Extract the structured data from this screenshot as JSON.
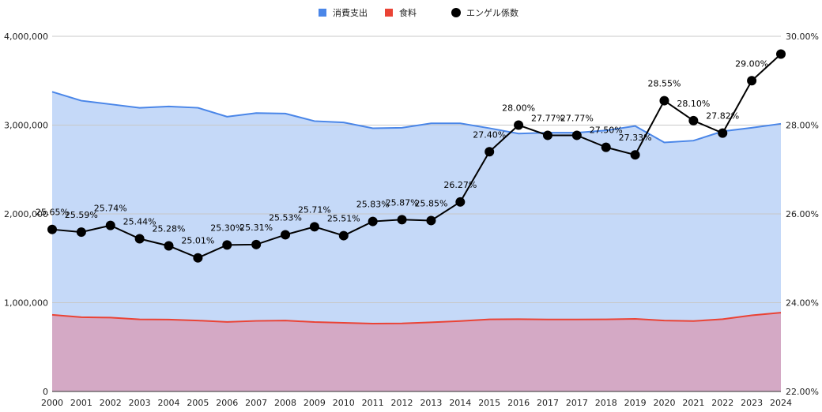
{
  "chart_data": {
    "type": "area",
    "categories": [
      "2000",
      "2001",
      "2002",
      "2003",
      "2004",
      "2005",
      "2006",
      "2007",
      "2008",
      "2009",
      "2010",
      "2011",
      "2012",
      "2013",
      "2014",
      "2015",
      "2016",
      "2017",
      "2017",
      "2018",
      "2019",
      "2020",
      "2021",
      "2022",
      "2023",
      "2024"
    ],
    "series": [
      {
        "name": "消費支出",
        "chart_type": "area",
        "axis": "left",
        "color": "#4a86e8",
        "fill": "#c5d9f8",
        "values": [
          3375000,
          3275000,
          3235000,
          3195000,
          3210000,
          3195000,
          3095000,
          3135000,
          3130000,
          3045000,
          3030000,
          2965000,
          2970000,
          3020000,
          3020000,
          2965000,
          2905000,
          2915000,
          2915000,
          2940000,
          2990000,
          2805000,
          2825000,
          2930000,
          2970000,
          3015000
        ]
      },
      {
        "name": "食料",
        "chart_type": "area",
        "axis": "left",
        "color": "#ea4335",
        "fill": "#d4a9c5",
        "values": [
          863000,
          837000,
          832000,
          812000,
          810000,
          799000,
          783000,
          795000,
          799000,
          782000,
          773000,
          765000,
          767000,
          779000,
          793000,
          812000,
          814000,
          811000,
          811000,
          812000,
          818000,
          799000,
          793000,
          814000,
          858000,
          888000
        ]
      },
      {
        "name": "エンゲル係数",
        "chart_type": "line",
        "axis": "right",
        "color": "#000000",
        "values": [
          25.65,
          25.59,
          25.74,
          25.44,
          25.28,
          25.01,
          25.3,
          25.31,
          25.53,
          25.71,
          25.51,
          25.83,
          25.87,
          25.85,
          26.27,
          27.4,
          28.0,
          27.77,
          27.77,
          27.5,
          27.33,
          28.55,
          28.1,
          27.82,
          29.0,
          29.6
        ],
        "labels": [
          "25.65%",
          "25.59%",
          "25.74%",
          "25.44%",
          "25.28%",
          "25.01%",
          "25.30%",
          "25.31%",
          "25.53%",
          "25.71%",
          "25.51%",
          "25.83%",
          "25.87%",
          "25.85%",
          "26.27%",
          "27.40%",
          "28.00%",
          "27.77%",
          "27.77%",
          "27.50%",
          "27.33%",
          "28.55%",
          "28.10%",
          "27.82%",
          "29.00%",
          ""
        ]
      }
    ],
    "y_left": {
      "ticks": [
        "0",
        "1,000,000",
        "2,000,000",
        "3,000,000",
        "4,000,000"
      ],
      "range": [
        0,
        4000000
      ]
    },
    "y_right": {
      "ticks": [
        "22.00%",
        "24.00%",
        "26.00%",
        "28.00%",
        "30.00%"
      ],
      "range": [
        22,
        30
      ]
    },
    "legend_position": "top-center",
    "grid": true
  }
}
